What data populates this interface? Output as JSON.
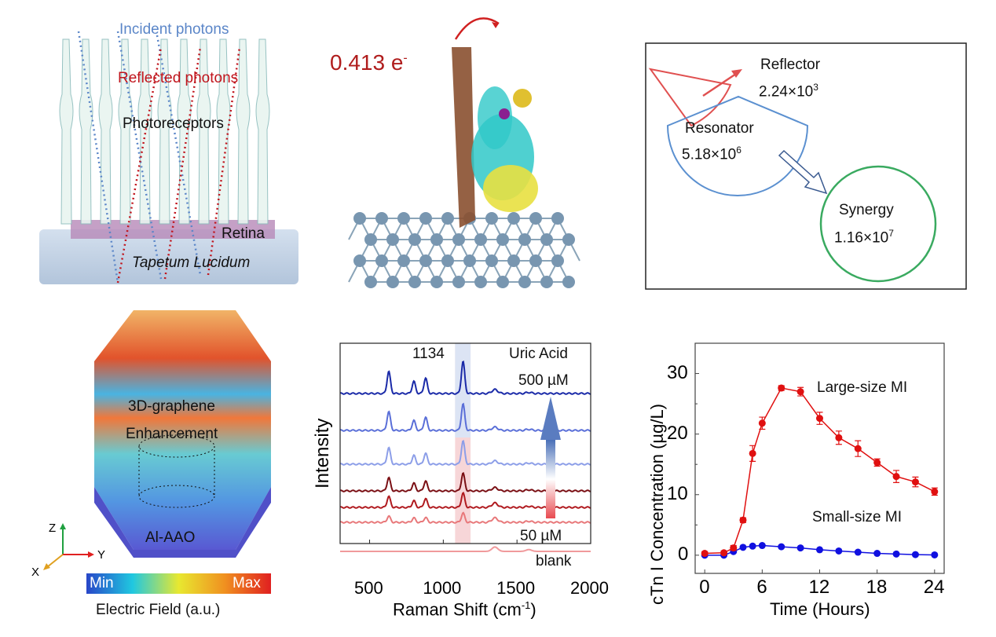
{
  "panel_a": {
    "incident": "Incident photons",
    "reflected": "Reflected photons",
    "photoreceptors": "Photoreceptors",
    "retina": "Retina",
    "tapetum": "Tapetum Lucidum",
    "colors": {
      "incident": "#5b86c8",
      "reflected": "#c0141c"
    }
  },
  "panel_b": {
    "charge": "0.413 e",
    "charge_sup": "-",
    "color": "#b01d1d"
  },
  "panel_c": {
    "reflector": {
      "label": "Reflector",
      "value": "2.24×10",
      "exp": "3",
      "color": "#e05050"
    },
    "resonator": {
      "label": "Resonator",
      "value": "5.18×10",
      "exp": "6",
      "color": "#5b90d0"
    },
    "synergy": {
      "label": "Synergy",
      "value": "1.16×10",
      "exp": "7",
      "color": "#3aaa60"
    }
  },
  "panel_d": {
    "graphene": "3D-graphene",
    "enhancement": "Enhancement",
    "aao": "Al-AAO",
    "axes": {
      "z": "Z",
      "y": "Y",
      "x": "X"
    },
    "colorbar": {
      "min": "Min",
      "max": "Max",
      "label": "Electric Field (a.u.)"
    }
  },
  "chart_data": [
    {
      "type": "line",
      "title": "",
      "xlabel": "Raman Shift (cm",
      "xlabel_sup": "-1",
      "xlabel_end": ")",
      "ylabel": "Intensity",
      "xlim": [
        300,
        2000
      ],
      "xticks": [
        "500",
        "1000",
        "1500",
        "2000"
      ],
      "annotations": {
        "peak": "1134",
        "analyte": "Uric Acid",
        "high": "500 µM",
        "low": "50 µM",
        "blank": "blank"
      },
      "highlight_band": [
        1080,
        1185
      ],
      "peaks_cm": [
        630,
        800,
        880,
        1134,
        1350,
        1580
      ],
      "series": [
        {
          "color": "#1a2aa8",
          "heights": [
            1.0,
            0.55,
            0.7,
            1.45,
            0.18,
            0.05
          ]
        },
        {
          "color": "#5a6fd8",
          "heights": [
            0.85,
            0.45,
            0.6,
            1.2,
            0.15,
            0.05
          ]
        },
        {
          "color": "#8c9ee8",
          "heights": [
            0.75,
            0.4,
            0.5,
            1.05,
            0.15,
            0.05
          ]
        },
        {
          "color": "#7a0f14",
          "heights": [
            0.6,
            0.35,
            0.45,
            0.8,
            0.15,
            0.05
          ]
        },
        {
          "color": "#b01a1f",
          "heights": [
            0.5,
            0.3,
            0.4,
            0.65,
            0.2,
            0.05
          ]
        },
        {
          "color": "#e8787a",
          "heights": [
            0.28,
            0.2,
            0.22,
            0.42,
            0.2,
            0.05
          ]
        },
        {
          "color": "#f09a9c",
          "heights": [
            0,
            0,
            0,
            0,
            0.2,
            0.08
          ]
        }
      ]
    },
    {
      "type": "line",
      "title": "",
      "xlabel": "Time (Hours)",
      "ylabel": "cTn I Concentration (µg/L)",
      "xlim": [
        -1,
        25
      ],
      "ylim": [
        -3,
        35
      ],
      "xticks": [
        0,
        6,
        12,
        18,
        24
      ],
      "yticks": [
        0,
        10,
        20,
        30
      ],
      "series": [
        {
          "name": "Large-size MI",
          "color": "#e01010",
          "x": [
            0,
            2,
            3,
            4,
            5,
            6,
            8,
            10,
            12,
            14,
            16,
            18,
            20,
            22,
            24
          ],
          "y": [
            0.3,
            0.4,
            1.2,
            5.8,
            16.8,
            21.8,
            27.6,
            27.0,
            22.6,
            19.4,
            17.6,
            15.3,
            13.0,
            12.1,
            10.5
          ],
          "err": [
            0.3,
            0.3,
            0.4,
            0.4,
            1.3,
            1.0,
            0.4,
            0.7,
            1.0,
            1.1,
            1.3,
            0.6,
            1.0,
            0.8,
            0.6
          ]
        },
        {
          "name": "Small-size MI",
          "color": "#1010e0",
          "x": [
            0,
            2,
            3,
            4,
            5,
            6,
            8,
            10,
            12,
            14,
            16,
            18,
            20,
            22,
            24
          ],
          "y": [
            0.0,
            0.0,
            0.6,
            1.3,
            1.5,
            1.6,
            1.4,
            1.2,
            0.9,
            0.7,
            0.5,
            0.3,
            0.2,
            0.1,
            0.05
          ]
        }
      ]
    }
  ]
}
